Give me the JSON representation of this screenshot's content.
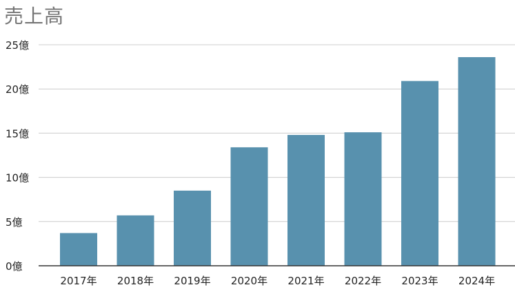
{
  "chart_data": {
    "type": "bar",
    "title": "売上高",
    "categories": [
      "2017年",
      "2018年",
      "2019年",
      "2020年",
      "2021年",
      "2022年",
      "2023年",
      "2024年"
    ],
    "values": [
      3.7,
      5.7,
      8.5,
      13.4,
      14.8,
      15.1,
      20.9,
      23.6
    ],
    "yticks": [
      0,
      5,
      10,
      15,
      20,
      25
    ],
    "ytick_labels": [
      "0億",
      "5億",
      "10億",
      "15億",
      "20億",
      "25億"
    ],
    "ylim": [
      0,
      25
    ],
    "xlabel": "",
    "ylabel": "",
    "grid": true,
    "legend": "none",
    "bar_color": "#5891ae",
    "gridline_color": "#cccccc",
    "axis_color": "#333333"
  }
}
